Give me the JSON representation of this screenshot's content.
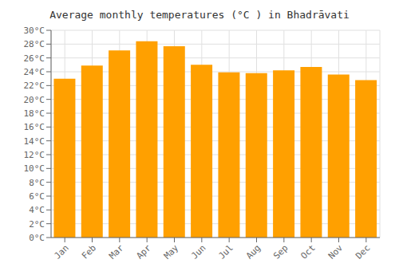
{
  "chart_data": {
    "type": "bar",
    "title": "Average monthly temperatures (°C ) in Bhadrāvati",
    "categories": [
      "Jan",
      "Feb",
      "Mar",
      "Apr",
      "May",
      "Jun",
      "Jul",
      "Aug",
      "Sep",
      "Oct",
      "Nov",
      "Dec"
    ],
    "values": [
      23.0,
      24.9,
      27.1,
      28.4,
      27.7,
      25.0,
      23.9,
      23.8,
      24.2,
      24.7,
      23.6,
      22.8
    ],
    "color": "#FFA000",
    "ylim": [
      0,
      30
    ],
    "yticks": [
      {
        "value": 0,
        "label": "0°C"
      },
      {
        "value": 2,
        "label": "2°C"
      },
      {
        "value": 4,
        "label": "4°C"
      },
      {
        "value": 6,
        "label": "6°C"
      },
      {
        "value": 8,
        "label": "8°C"
      },
      {
        "value": 10,
        "label": "10°C"
      },
      {
        "value": 12,
        "label": "12°C"
      },
      {
        "value": 14,
        "label": "14°C"
      },
      {
        "value": 16,
        "label": "16°C"
      },
      {
        "value": 18,
        "label": "18°C"
      },
      {
        "value": 20,
        "label": "20°C"
      },
      {
        "value": 22,
        "label": "22°C"
      },
      {
        "value": 24,
        "label": "24°C"
      },
      {
        "value": 26,
        "label": "26°C"
      },
      {
        "value": 28,
        "label": "28°C"
      },
      {
        "value": 30,
        "label": "30°C"
      }
    ],
    "grid": true
  }
}
